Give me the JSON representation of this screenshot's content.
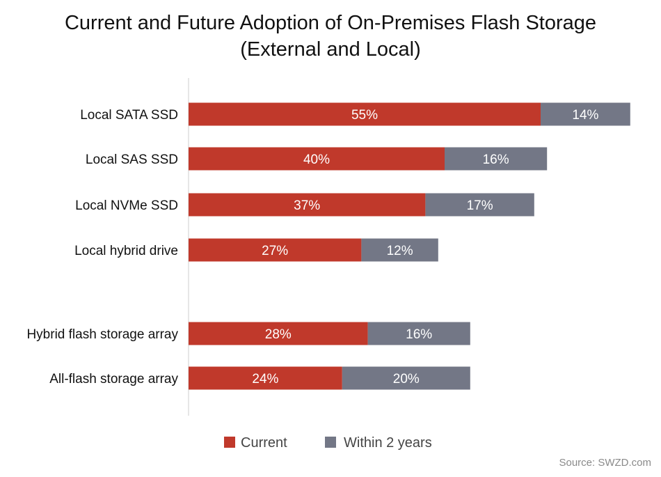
{
  "chart_data": {
    "type": "bar",
    "orientation": "horizontal",
    "stacked": true,
    "title_lines": [
      "Current and Future Adoption of On-Premises Flash Storage",
      "(External and Local)"
    ],
    "categories": [
      "Local SATA SSD",
      "Local SAS SSD",
      "Local NVMe SSD",
      "Local hybrid drive",
      "Hybrid flash storage array",
      "All-flash storage array"
    ],
    "series": [
      {
        "name": "Current",
        "color": "#c0392b",
        "values": [
          55,
          40,
          37,
          27,
          28,
          24
        ],
        "labels": [
          "55%",
          "40%",
          "37%",
          "27%",
          "28%",
          "24%"
        ]
      },
      {
        "name": "Within 2 years",
        "color": "#737786",
        "values": [
          14,
          16,
          17,
          12,
          16,
          20
        ],
        "labels": [
          "14%",
          "16%",
          "17%",
          "12%",
          "16%",
          "20%"
        ]
      }
    ],
    "xlim": [
      0,
      70
    ],
    "grid": false,
    "legend_position": "bottom-center",
    "source": "Source: SWZD.com"
  }
}
